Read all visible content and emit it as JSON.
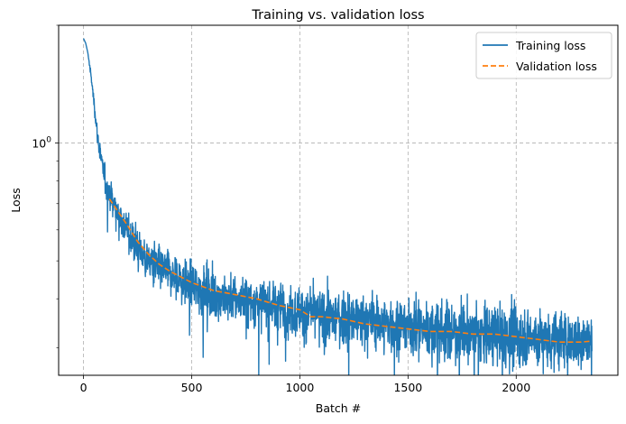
{
  "chart_data": {
    "type": "line",
    "title": "Training vs. validation loss",
    "xlabel": "Batch #",
    "ylabel": "Loss",
    "xlim": [
      -115,
      2470
    ],
    "ylim": [
      0.255,
      2.0
    ],
    "yscale": "log",
    "grid": true,
    "grid_style": "dashed",
    "legend_position": "top-right",
    "x_ticks": [
      0,
      500,
      1000,
      1500,
      2000
    ],
    "x_tick_labels": [
      "0",
      "500",
      "1000",
      "1500",
      "2000"
    ],
    "y_major_ticks": [
      1.0
    ],
    "y_major_tick_labels": [
      "10",
      "0"
    ],
    "y_minor_ticks": [
      0.3,
      0.4,
      0.5,
      0.6,
      0.7,
      0.8,
      0.9,
      2.0
    ],
    "series": [
      {
        "name": "Training loss",
        "color": "#1f77b4",
        "style": "solid",
        "n_points": 2350,
        "x": [
          0,
          10,
          20,
          30,
          40,
          50,
          60,
          70,
          80,
          90,
          100,
          120,
          150,
          200,
          250,
          300,
          400,
          500,
          600,
          700,
          800,
          900,
          1000,
          1100,
          1200,
          1300,
          1400,
          1500,
          1600,
          1700,
          1800,
          1900,
          2000,
          2100,
          2200,
          2350
        ],
        "y": [
          1.85,
          1.8,
          1.7,
          1.55,
          1.4,
          1.25,
          1.1,
          1.0,
          0.92,
          0.85,
          0.8,
          0.74,
          0.68,
          0.6,
          0.54,
          0.5,
          0.46,
          0.43,
          0.41,
          0.4,
          0.39,
          0.38,
          0.37,
          0.36,
          0.355,
          0.35,
          0.345,
          0.34,
          0.335,
          0.33,
          0.327,
          0.324,
          0.32,
          0.317,
          0.314,
          0.31
        ],
        "noise_spread": [
          0,
          0,
          0,
          0.02,
          0.03,
          0.04,
          0.05,
          0.06,
          0.07,
          0.08,
          0.09,
          0.1,
          0.11,
          0.12,
          0.13,
          0.13,
          0.14,
          0.14,
          0.15,
          0.15,
          0.15,
          0.16,
          0.16,
          0.16,
          0.17,
          0.17,
          0.17,
          0.17,
          0.18,
          0.18,
          0.18,
          0.18,
          0.18,
          0.18,
          0.18,
          0.18
        ]
      },
      {
        "name": "Validation loss",
        "color": "#ff7f0e",
        "style": "dashed",
        "x": [
          120,
          150,
          200,
          250,
          300,
          350,
          400,
          450,
          500,
          550,
          600,
          700,
          800,
          900,
          1000,
          1050,
          1100,
          1200,
          1300,
          1400,
          1500,
          1600,
          1700,
          1800,
          1900,
          2000,
          2100,
          2200,
          2300,
          2350
        ],
        "y": [
          0.72,
          0.68,
          0.62,
          0.56,
          0.52,
          0.49,
          0.47,
          0.455,
          0.44,
          0.43,
          0.42,
          0.41,
          0.4,
          0.385,
          0.375,
          0.36,
          0.36,
          0.355,
          0.345,
          0.34,
          0.335,
          0.33,
          0.33,
          0.325,
          0.325,
          0.32,
          0.315,
          0.31,
          0.31,
          0.312
        ]
      }
    ]
  }
}
